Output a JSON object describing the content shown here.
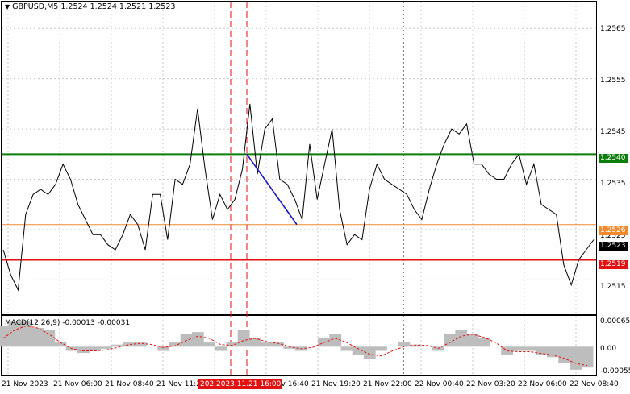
{
  "chart_title": {
    "symbol_tf": "GBPUSD,M5",
    "open": "1.2524",
    "high": "1.2524",
    "low": "1.2521",
    "close": "1.2523"
  },
  "indicator": {
    "name": "MACD(12,26,9)",
    "value1": "-0.00013",
    "value2": "-0.00031"
  },
  "price_axis": {
    "ticks": [
      "1.2565",
      "1.2555",
      "1.2545",
      "1.2535",
      "1.2525",
      "1.2515"
    ],
    "labels": {
      "green_level": "1.2540",
      "orange_level": "1.2526",
      "current_price": "1.2523",
      "red_level": "1.2519"
    }
  },
  "macd_axis": {
    "ticks": [
      "0.00065",
      "0.00",
      "-0.00055"
    ]
  },
  "time_axis": {
    "ticks": [
      "21 Nov 2023",
      "21 Nov 06:00",
      "21 Nov 08:40",
      "21 Nov 11:20",
      "21 Nov 16:40",
      "21 Nov 19:20",
      "21 Nov 22:00",
      "22 Nov 00:40",
      "22 Nov 03:20",
      "22 Nov 06:00",
      "22 Nov 08:40"
    ],
    "highlighted": [
      "2023.11.21 14:00",
      "2023.11.21 16:00"
    ]
  },
  "colors": {
    "green_level": "#0a7d0a",
    "orange_level": "#f08a2c",
    "red_level": "#e31212",
    "trendline": "#1515c8",
    "macd_histogram": "#bdbdbd",
    "macd_signal": "#e31212",
    "current_price_tag": "#000000"
  },
  "chart_data": {
    "type": "line",
    "series": [
      {
        "values": [
          1.2521,
          1.2516,
          1.2513,
          1.2528,
          1.2532,
          1.2533,
          1.2532,
          1.2534,
          1.2538,
          1.2535,
          1.253,
          1.2527,
          1.2524,
          1.2524,
          1.2522,
          1.2521,
          1.2524,
          1.2528,
          1.2526,
          1.2521,
          1.2532,
          1.2532,
          1.2523,
          1.2535,
          1.2534,
          1.2538,
          1.2549,
          1.2537,
          1.2527,
          1.2532,
          1.2529,
          1.2531,
          1.2537,
          1.255,
          1.2536,
          1.2545,
          1.2547,
          1.2535,
          1.2534,
          1.2531,
          1.2527,
          1.2542,
          1.2531,
          1.2538,
          1.2545,
          1.2529,
          1.2522,
          1.2524,
          1.2523,
          1.2533,
          1.2538,
          1.2535,
          1.2534,
          1.2533,
          1.2532,
          1.2529,
          1.2527,
          1.2533,
          1.2538,
          1.2542,
          1.2545,
          1.2544,
          1.2546,
          1.2538,
          1.2538,
          1.2536,
          1.2535,
          1.2535,
          1.2538,
          1.254,
          1.2534,
          1.2538,
          1.253,
          1.2529,
          1.2528,
          1.2518,
          1.2514,
          1.2519,
          1.2521,
          1.2523
        ],
        "color": "#000000"
      }
    ],
    "y_axis_range": [
      1.25085,
      1.257
    ],
    "horizontal_levels": [
      1.254,
      1.2526,
      1.2519
    ],
    "trendline": {
      "from": [
        1.254
      ],
      "to": [
        1.2526
      ]
    },
    "macd": {
      "histogram": [
        0.0005,
        0.0006,
        0.0006,
        0.00045,
        0.0004,
        0.0001,
        -0.0001,
        -0.00015,
        -0.0001,
        -5e-05,
        5e-05,
        0.0001,
        0.0001,
        0.0,
        -0.0001,
        0.0001,
        0.0003,
        0.00035,
        0.0001,
        -0.0001,
        0.0001,
        0.0004,
        0.0002,
        0.0001,
        0.0001,
        -5e-05,
        -0.0001,
        0.0,
        0.0002,
        0.0003,
        -0.0001,
        -0.0002,
        -0.0003,
        -0.0001,
        0.0,
        0.0001,
        5e-05,
        0.0,
        -0.0001,
        0.0003,
        0.0004,
        0.0003,
        0.0002,
        0.0,
        -0.0002,
        -0.0001,
        -0.0001,
        -0.0002,
        -0.00025,
        -0.0004,
        -0.00055,
        -0.0005
      ],
      "signal": [
        0.0002,
        0.0004,
        0.0005,
        0.00045,
        0.0003,
        0.0001,
        -5e-05,
        -0.0001,
        -0.0001,
        -8e-05,
        -2e-05,
        5e-05,
        8e-05,
        5e-05,
        -2e-05,
        2e-05,
        0.00015,
        0.00025,
        0.0002,
        5e-05,
        3e-05,
        0.00015,
        0.0002,
        0.00012,
        8e-05,
        0.0,
        -5e-05,
        -2e-05,
        0.0001,
        0.0002,
        0.0001,
        -5e-05,
        -0.00018,
        -0.00022,
        -0.0001,
        0.0,
        4e-05,
        3e-05,
        -4e-05,
        0.0001,
        0.00025,
        0.0003,
        0.00022,
        0.0001,
        -0.0001,
        -0.00012,
        -0.00012,
        -0.00016,
        -0.0002,
        -0.00028,
        -0.0004,
        -0.00045
      ],
      "y_axis_range": [
        -0.00065,
        0.0007
      ]
    }
  }
}
